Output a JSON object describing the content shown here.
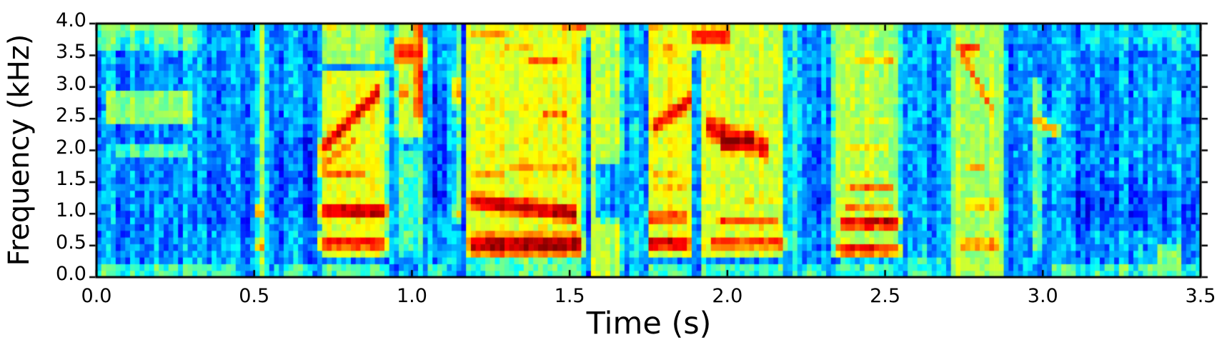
{
  "chart_data": {
    "type": "heatmap",
    "subtype": "speech-spectrogram",
    "title": "",
    "xlabel": "Time (s)",
    "ylabel": "Frequency (kHz)",
    "xlim": [
      0,
      3.5
    ],
    "ylim": [
      0,
      4
    ],
    "xticks": {
      "values": [
        0.0,
        0.5,
        1.0,
        1.5,
        2.0,
        2.5,
        3.0,
        3.5
      ],
      "labels": [
        "0.0",
        "0.5",
        "1.0",
        "1.5",
        "2.0",
        "2.5",
        "3.0",
        "3.5"
      ]
    },
    "yticks": {
      "values": [
        0.0,
        0.5,
        1.0,
        1.5,
        2.0,
        2.5,
        3.0,
        3.5,
        4.0
      ],
      "labels": [
        "0.0",
        "0.5",
        "1.0",
        "1.5",
        "2.0",
        "2.5",
        "3.0",
        "3.5",
        "4.0"
      ]
    },
    "colormap": "jet",
    "colors": {
      "figure_bg": "#ffffff",
      "text": "#000000",
      "spine": "#000000"
    },
    "grid": {
      "time_bins": 230,
      "freq_bins": 38
    },
    "background_level": 0.27,
    "noise": {
      "cell_quiet": 0.085,
      "cell_loud": 0.05,
      "column": 0.065,
      "seed": 1234
    },
    "summary": "Speech spectrogram, 0-3.5 s, 0-4 kHz. Voiced segments with red formant bands near t=0.5, 0.7-0.93, 0.93-1.05, 1.16-1.56, 1.74-1.9, 1.9-2.19, 2.32-2.56, 2.7-2.89 s separated by blue pauses.",
    "patches": [
      {
        "t": [
          -0.1,
          0.34
        ],
        "f": [
          3.55,
          4.2
        ],
        "v": 0.46
      },
      {
        "t": [
          -0.1,
          0.28
        ],
        "f": [
          3.8,
          4.2
        ],
        "v": 0.52
      },
      {
        "t": [
          0.02,
          0.32
        ],
        "f": [
          2.35,
          3.05
        ],
        "v": 0.52
      },
      {
        "t": [
          0.05,
          0.3
        ],
        "f": [
          1.85,
          2.15
        ],
        "v": 0.45
      },
      {
        "t": [
          -0.1,
          0.45
        ],
        "f": [
          -0.2,
          0.28
        ],
        "v": 0.44
      },
      {
        "t": [
          0.28,
          0.5
        ],
        "f": [
          0.75,
          1.75
        ],
        "v": 0.22,
        "m": "min"
      },
      {
        "t": [
          0.33,
          0.49
        ],
        "f": [
          1.2,
          3.6
        ],
        "v": 0.25,
        "m": "min"
      },
      {
        "t": [
          0.497,
          0.545
        ],
        "f": [
          -0.2,
          4.2
        ],
        "v": 0.52
      },
      {
        "t": [
          0.5,
          0.55
        ],
        "f": [
          0.1,
          0.35
        ],
        "v": 0.58
      },
      {
        "t": [
          0.555,
          0.7
        ],
        "f": [
          0.85,
          2.3
        ],
        "v": 0.21,
        "m": "min"
      },
      {
        "t": [
          0.545,
          0.7
        ],
        "f": [
          -0.2,
          0.25
        ],
        "v": 0.4
      },
      {
        "t": [
          0.7,
          0.935
        ],
        "f": [
          0.25,
          3.3
        ],
        "v": 0.6
      },
      {
        "t": [
          0.7,
          0.935
        ],
        "f": [
          3.3,
          4.2
        ],
        "v": 0.54
      },
      {
        "t": [
          0.7,
          0.935
        ],
        "f": [
          -0.2,
          0.25
        ],
        "v": 0.46
      },
      {
        "t": [
          0.935,
          1.05
        ],
        "f": [
          2.1,
          4.2
        ],
        "v": 0.55
      },
      {
        "t": [
          0.935,
          1.05
        ],
        "f": [
          0.3,
          2.1
        ],
        "v": 0.42
      },
      {
        "t": [
          0.995,
          1.048
        ],
        "f": [
          2.4,
          4.2
        ],
        "v": 0.78
      },
      {
        "t": [
          1.048,
          1.125
        ],
        "f": [
          1.0,
          3.1
        ],
        "v": 0.18,
        "m": "min"
      },
      {
        "t": [
          1.03,
          1.13
        ],
        "f": [
          -0.2,
          0.3
        ],
        "v": 0.4
      },
      {
        "t": [
          1.125,
          1.162
        ],
        "f": [
          0.8,
          4.2
        ],
        "v": 0.6
      },
      {
        "t": [
          1.162,
          1.555
        ],
        "f": [
          0.28,
          4.2
        ],
        "v": 0.6
      },
      {
        "t": [
          1.162,
          1.555
        ],
        "f": [
          -0.2,
          0.28
        ],
        "v": 0.45
      },
      {
        "t": [
          1.555,
          1.68
        ],
        "f": [
          -0.2,
          4.2
        ],
        "v": 0.55
      },
      {
        "t": [
          1.57,
          1.7
        ],
        "f": [
          0.85,
          1.85
        ],
        "v": 0.3,
        "m": "min"
      },
      {
        "t": [
          1.68,
          1.735
        ],
        "f": [
          -0.2,
          4.2
        ],
        "v": 0.42
      },
      {
        "t": [
          1.682,
          1.735
        ],
        "f": [
          2.4,
          3.95
        ],
        "v": 0.33,
        "m": "min"
      },
      {
        "t": [
          1.69,
          1.74
        ],
        "f": [
          0.8,
          1.9
        ],
        "v": 0.32,
        "m": "min"
      },
      {
        "t": [
          1.735,
          1.9
        ],
        "f": [
          0.25,
          4.2
        ],
        "v": 0.6
      },
      {
        "t": [
          1.735,
          1.9
        ],
        "f": [
          -0.2,
          0.25
        ],
        "v": 0.45
      },
      {
        "t": [
          1.9,
          2.19
        ],
        "f": [
          0.25,
          4.2
        ],
        "v": 0.58
      },
      {
        "t": [
          1.9,
          2.19
        ],
        "f": [
          -0.2,
          0.25
        ],
        "v": 0.44
      },
      {
        "t": [
          2.19,
          2.245
        ],
        "f": [
          -0.2,
          4.2
        ],
        "v": 0.44
      },
      {
        "t": [
          2.245,
          2.325
        ],
        "f": [
          0.9,
          2.3
        ],
        "v": 0.22,
        "m": "min"
      },
      {
        "t": [
          2.19,
          2.32
        ],
        "f": [
          -0.2,
          0.3
        ],
        "v": 0.42
      },
      {
        "t": [
          2.32,
          2.56
        ],
        "f": [
          0.25,
          4.2
        ],
        "v": 0.55
      },
      {
        "t": [
          2.32,
          2.56
        ],
        "f": [
          -0.2,
          0.25
        ],
        "v": 0.44
      },
      {
        "t": [
          2.56,
          2.695
        ],
        "f": [
          0.5,
          4.2
        ],
        "v": 0.29,
        "m": "min"
      },
      {
        "t": [
          2.598,
          2.64
        ],
        "f": [
          -0.2,
          4.2
        ],
        "v": 0.42
      },
      {
        "t": [
          2.56,
          2.7
        ],
        "f": [
          -0.2,
          0.35
        ],
        "v": 0.42
      },
      {
        "t": [
          2.7,
          2.89
        ],
        "f": [
          -0.2,
          4.2
        ],
        "v": 0.55
      },
      {
        "t": [
          2.89,
          2.955
        ],
        "f": [
          0.4,
          4.2
        ],
        "v": 0.33,
        "m": "min"
      },
      {
        "t": [
          2.955,
          3.01
        ],
        "f": [
          0.3,
          3.2
        ],
        "v": 0.46
      },
      {
        "t": [
          3.01,
          3.6
        ],
        "f": [
          -0.2,
          0.3
        ],
        "v": 0.42
      },
      {
        "t": [
          3.05,
          3.6
        ],
        "f": [
          0.7,
          1.6
        ],
        "v": 0.22,
        "m": "min"
      },
      {
        "t": [
          3.35,
          3.45
        ],
        "f": [
          0.05,
          0.55
        ],
        "v": 0.5
      },
      {
        "t": [
          3.1,
          3.6
        ],
        "f": [
          3.55,
          4.2
        ],
        "v": 0.36
      },
      {
        "t": [
          3.27,
          3.33
        ],
        "f": [
          -0.2,
          3.5
        ],
        "v": 0.36
      }
    ],
    "bands": [
      {
        "t": [
          0.498,
          0.535
        ],
        "fc": [
          1.05,
          1.05
        ],
        "bw": 0.3,
        "v": 0.86
      },
      {
        "t": [
          0.498,
          0.54
        ],
        "fc": [
          0.5,
          0.5
        ],
        "bw": 0.3,
        "v": 0.76
      },
      {
        "t": [
          0.7,
          0.93
        ],
        "fc": [
          0.55,
          0.55
        ],
        "bw": 0.3,
        "v": 0.88
      },
      {
        "t": [
          0.7,
          0.93
        ],
        "fc": [
          1.05,
          1.05
        ],
        "bw": 0.34,
        "v": 0.96
      },
      {
        "t": [
          0.7,
          0.91
        ],
        "fc": [
          1.95,
          3.0
        ],
        "bw": 0.36,
        "v": 0.92
      },
      {
        "t": [
          0.7,
          0.86
        ],
        "fc": [
          1.65,
          1.65
        ],
        "bw": 0.25,
        "v": 0.8
      },
      {
        "t": [
          0.7,
          0.84
        ],
        "fc": [
          1.7,
          2.25
        ],
        "bw": 0.22,
        "v": 0.8
      },
      {
        "t": [
          0.71,
          0.78
        ],
        "fc": [
          3.9,
          3.9
        ],
        "bw": 0.25,
        "v": 0.68
      },
      {
        "t": [
          0.935,
          1.05
        ],
        "fc": [
          3.55,
          3.55
        ],
        "bw": 0.55,
        "v": 0.83
      },
      {
        "t": [
          0.945,
          1.005
        ],
        "fc": [
          2.9,
          2.9
        ],
        "bw": 0.35,
        "v": 0.76
      },
      {
        "t": [
          1.125,
          1.162
        ],
        "fc": [
          2.95,
          2.95
        ],
        "bw": 0.6,
        "v": 0.8
      },
      {
        "t": [
          1.128,
          1.162
        ],
        "fc": [
          1.0,
          1.0
        ],
        "bw": 0.3,
        "v": 0.7
      },
      {
        "t": [
          1.17,
          1.55
        ],
        "fc": [
          0.52,
          0.52
        ],
        "bw": 0.42,
        "v": 0.97
      },
      {
        "t": [
          1.17,
          1.53
        ],
        "fc": [
          1.22,
          1.0
        ],
        "bw": 0.36,
        "v": 0.95
      },
      {
        "t": [
          1.17,
          1.3
        ],
        "fc": [
          1.6,
          1.6
        ],
        "bw": 0.22,
        "v": 0.74
      },
      {
        "t": [
          1.29,
          1.53
        ],
        "fc": [
          1.78,
          1.78
        ],
        "bw": 0.2,
        "v": 0.77
      },
      {
        "t": [
          1.4,
          1.5
        ],
        "fc": [
          2.55,
          2.55
        ],
        "bw": 0.22,
        "v": 0.78
      },
      {
        "t": [
          1.25,
          1.42
        ],
        "fc": [
          2.2,
          2.2
        ],
        "bw": 0.25,
        "v": 0.66
      },
      {
        "t": [
          1.36,
          1.48
        ],
        "fc": [
          3.42,
          3.42
        ],
        "bw": 0.25,
        "v": 0.78
      },
      {
        "t": [
          1.28,
          1.4
        ],
        "fc": [
          3.6,
          3.6
        ],
        "bw": 0.18,
        "v": 0.74
      },
      {
        "t": [
          1.17,
          1.33
        ],
        "fc": [
          3.85,
          3.85
        ],
        "bw": 0.3,
        "v": 0.73
      },
      {
        "t": [
          1.46,
          1.57
        ],
        "fc": [
          3.92,
          3.92
        ],
        "bw": 0.22,
        "v": 0.78
      },
      {
        "t": [
          1.74,
          1.89
        ],
        "fc": [
          0.54,
          0.54
        ],
        "bw": 0.3,
        "v": 0.93
      },
      {
        "t": [
          1.74,
          1.89
        ],
        "fc": [
          0.95,
          0.95
        ],
        "bw": 0.28,
        "v": 0.85
      },
      {
        "t": [
          1.75,
          1.88
        ],
        "fc": [
          1.38,
          1.38
        ],
        "bw": 0.2,
        "v": 0.75
      },
      {
        "t": [
          1.75,
          1.87
        ],
        "fc": [
          1.65,
          1.65
        ],
        "bw": 0.18,
        "v": 0.72
      },
      {
        "t": [
          1.75,
          1.895
        ],
        "fc": [
          2.3,
          2.85
        ],
        "bw": 0.38,
        "v": 0.9
      },
      {
        "t": [
          1.76,
          1.85
        ],
        "fc": [
          3.58,
          3.58
        ],
        "bw": 0.22,
        "v": 0.77
      },
      {
        "t": [
          1.74,
          1.81
        ],
        "fc": [
          3.95,
          3.95
        ],
        "bw": 0.2,
        "v": 0.72
      },
      {
        "t": [
          1.88,
          2.02
        ],
        "fc": [
          3.8,
          3.8
        ],
        "bw": 0.42,
        "v": 0.87
      },
      {
        "t": [
          1.92,
          2.14
        ],
        "fc": [
          2.4,
          2.0
        ],
        "bw": 0.55,
        "v": 0.88
      },
      {
        "t": [
          1.97,
          2.1
        ],
        "fc": [
          2.15,
          2.15
        ],
        "bw": 0.45,
        "v": 1.0
      },
      {
        "t": [
          1.94,
          2.19
        ],
        "fc": [
          0.55,
          0.55
        ],
        "bw": 0.28,
        "v": 0.84
      },
      {
        "t": [
          1.96,
          2.17
        ],
        "fc": [
          0.88,
          0.88
        ],
        "bw": 0.25,
        "v": 0.8
      },
      {
        "t": [
          2.03,
          2.18
        ],
        "fc": [
          1.18,
          1.18
        ],
        "bw": 0.2,
        "v": 0.68
      },
      {
        "t": [
          2.04,
          2.18
        ],
        "fc": [
          3.4,
          3.4
        ],
        "bw": 0.3,
        "v": 0.6
      },
      {
        "t": [
          2.34,
          2.555
        ],
        "fc": [
          0.45,
          0.45
        ],
        "bw": 0.27,
        "v": 0.88
      },
      {
        "t": [
          2.35,
          2.555
        ],
        "fc": [
          0.86,
          0.86
        ],
        "bw": 0.3,
        "v": 0.9
      },
      {
        "t": [
          2.43,
          2.54
        ],
        "fc": [
          0.87,
          0.87
        ],
        "bw": 0.26,
        "v": 0.98
      },
      {
        "t": [
          2.36,
          2.54
        ],
        "fc": [
          1.13,
          1.13
        ],
        "bw": 0.2,
        "v": 0.78
      },
      {
        "t": [
          2.37,
          2.54
        ],
        "fc": [
          1.43,
          1.43
        ],
        "bw": 0.2,
        "v": 0.76
      },
      {
        "t": [
          2.37,
          2.53
        ],
        "fc": [
          1.67,
          1.67
        ],
        "bw": 0.18,
        "v": 0.68
      },
      {
        "t": [
          2.36,
          2.53
        ],
        "fc": [
          2.07,
          2.07
        ],
        "bw": 0.18,
        "v": 0.66
      },
      {
        "t": [
          2.37,
          2.54
        ],
        "fc": [
          2.5,
          2.5
        ],
        "bw": 0.16,
        "v": 0.64
      },
      {
        "t": [
          2.5,
          2.545
        ],
        "fc": [
          2.52,
          2.52
        ],
        "bw": 0.18,
        "v": 0.74
      },
      {
        "t": [
          2.39,
          2.54
        ],
        "fc": [
          3.45,
          3.45
        ],
        "bw": 0.2,
        "v": 0.7
      },
      {
        "t": [
          2.49,
          2.545
        ],
        "fc": [
          3.45,
          3.45
        ],
        "bw": 0.22,
        "v": 0.78
      },
      {
        "t": [
          2.72,
          2.85
        ],
        "fc": [
          3.75,
          2.55
        ],
        "bw": 0.3,
        "v": 0.8
      },
      {
        "t": [
          2.73,
          2.81
        ],
        "fc": [
          3.62,
          3.62
        ],
        "bw": 0.25,
        "v": 0.84
      },
      {
        "t": [
          2.75,
          2.83
        ],
        "fc": [
          1.75,
          1.75
        ],
        "bw": 0.25,
        "v": 0.73
      },
      {
        "t": [
          2.74,
          2.87
        ],
        "fc": [
          1.15,
          1.15
        ],
        "bw": 0.28,
        "v": 0.72
      },
      {
        "t": [
          2.73,
          2.87
        ],
        "fc": [
          0.52,
          0.52
        ],
        "bw": 0.28,
        "v": 0.76
      },
      {
        "t": [
          2.96,
          3.06
        ],
        "fc": [
          2.5,
          2.28
        ],
        "bw": 0.25,
        "v": 0.72
      }
    ]
  }
}
